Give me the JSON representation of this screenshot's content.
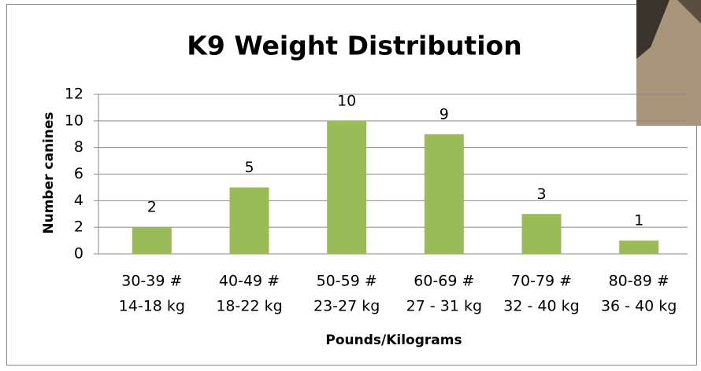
{
  "chart_data": {
    "type": "bar",
    "title": "K9 Weight Distribution",
    "y_label": "Number canines",
    "x_label": "Pounds/Kilograms",
    "categories": [
      [
        "30-39 #",
        "14-18 kg"
      ],
      [
        "40-49 #",
        "18-22 kg"
      ],
      [
        "50-59 #",
        "23-27 kg"
      ],
      [
        "60-69 #",
        "27 - 31 kg"
      ],
      [
        "70-79 #",
        "32 - 40 kg"
      ],
      [
        "80-89 #",
        "36 - 40 kg"
      ]
    ],
    "values": [
      2,
      5,
      10,
      9,
      3,
      1
    ],
    "color": "#9bbb59",
    "ylim": [
      0,
      12
    ],
    "yticks": [
      0,
      2,
      4,
      6,
      8,
      10,
      12
    ],
    "grid": true
  }
}
